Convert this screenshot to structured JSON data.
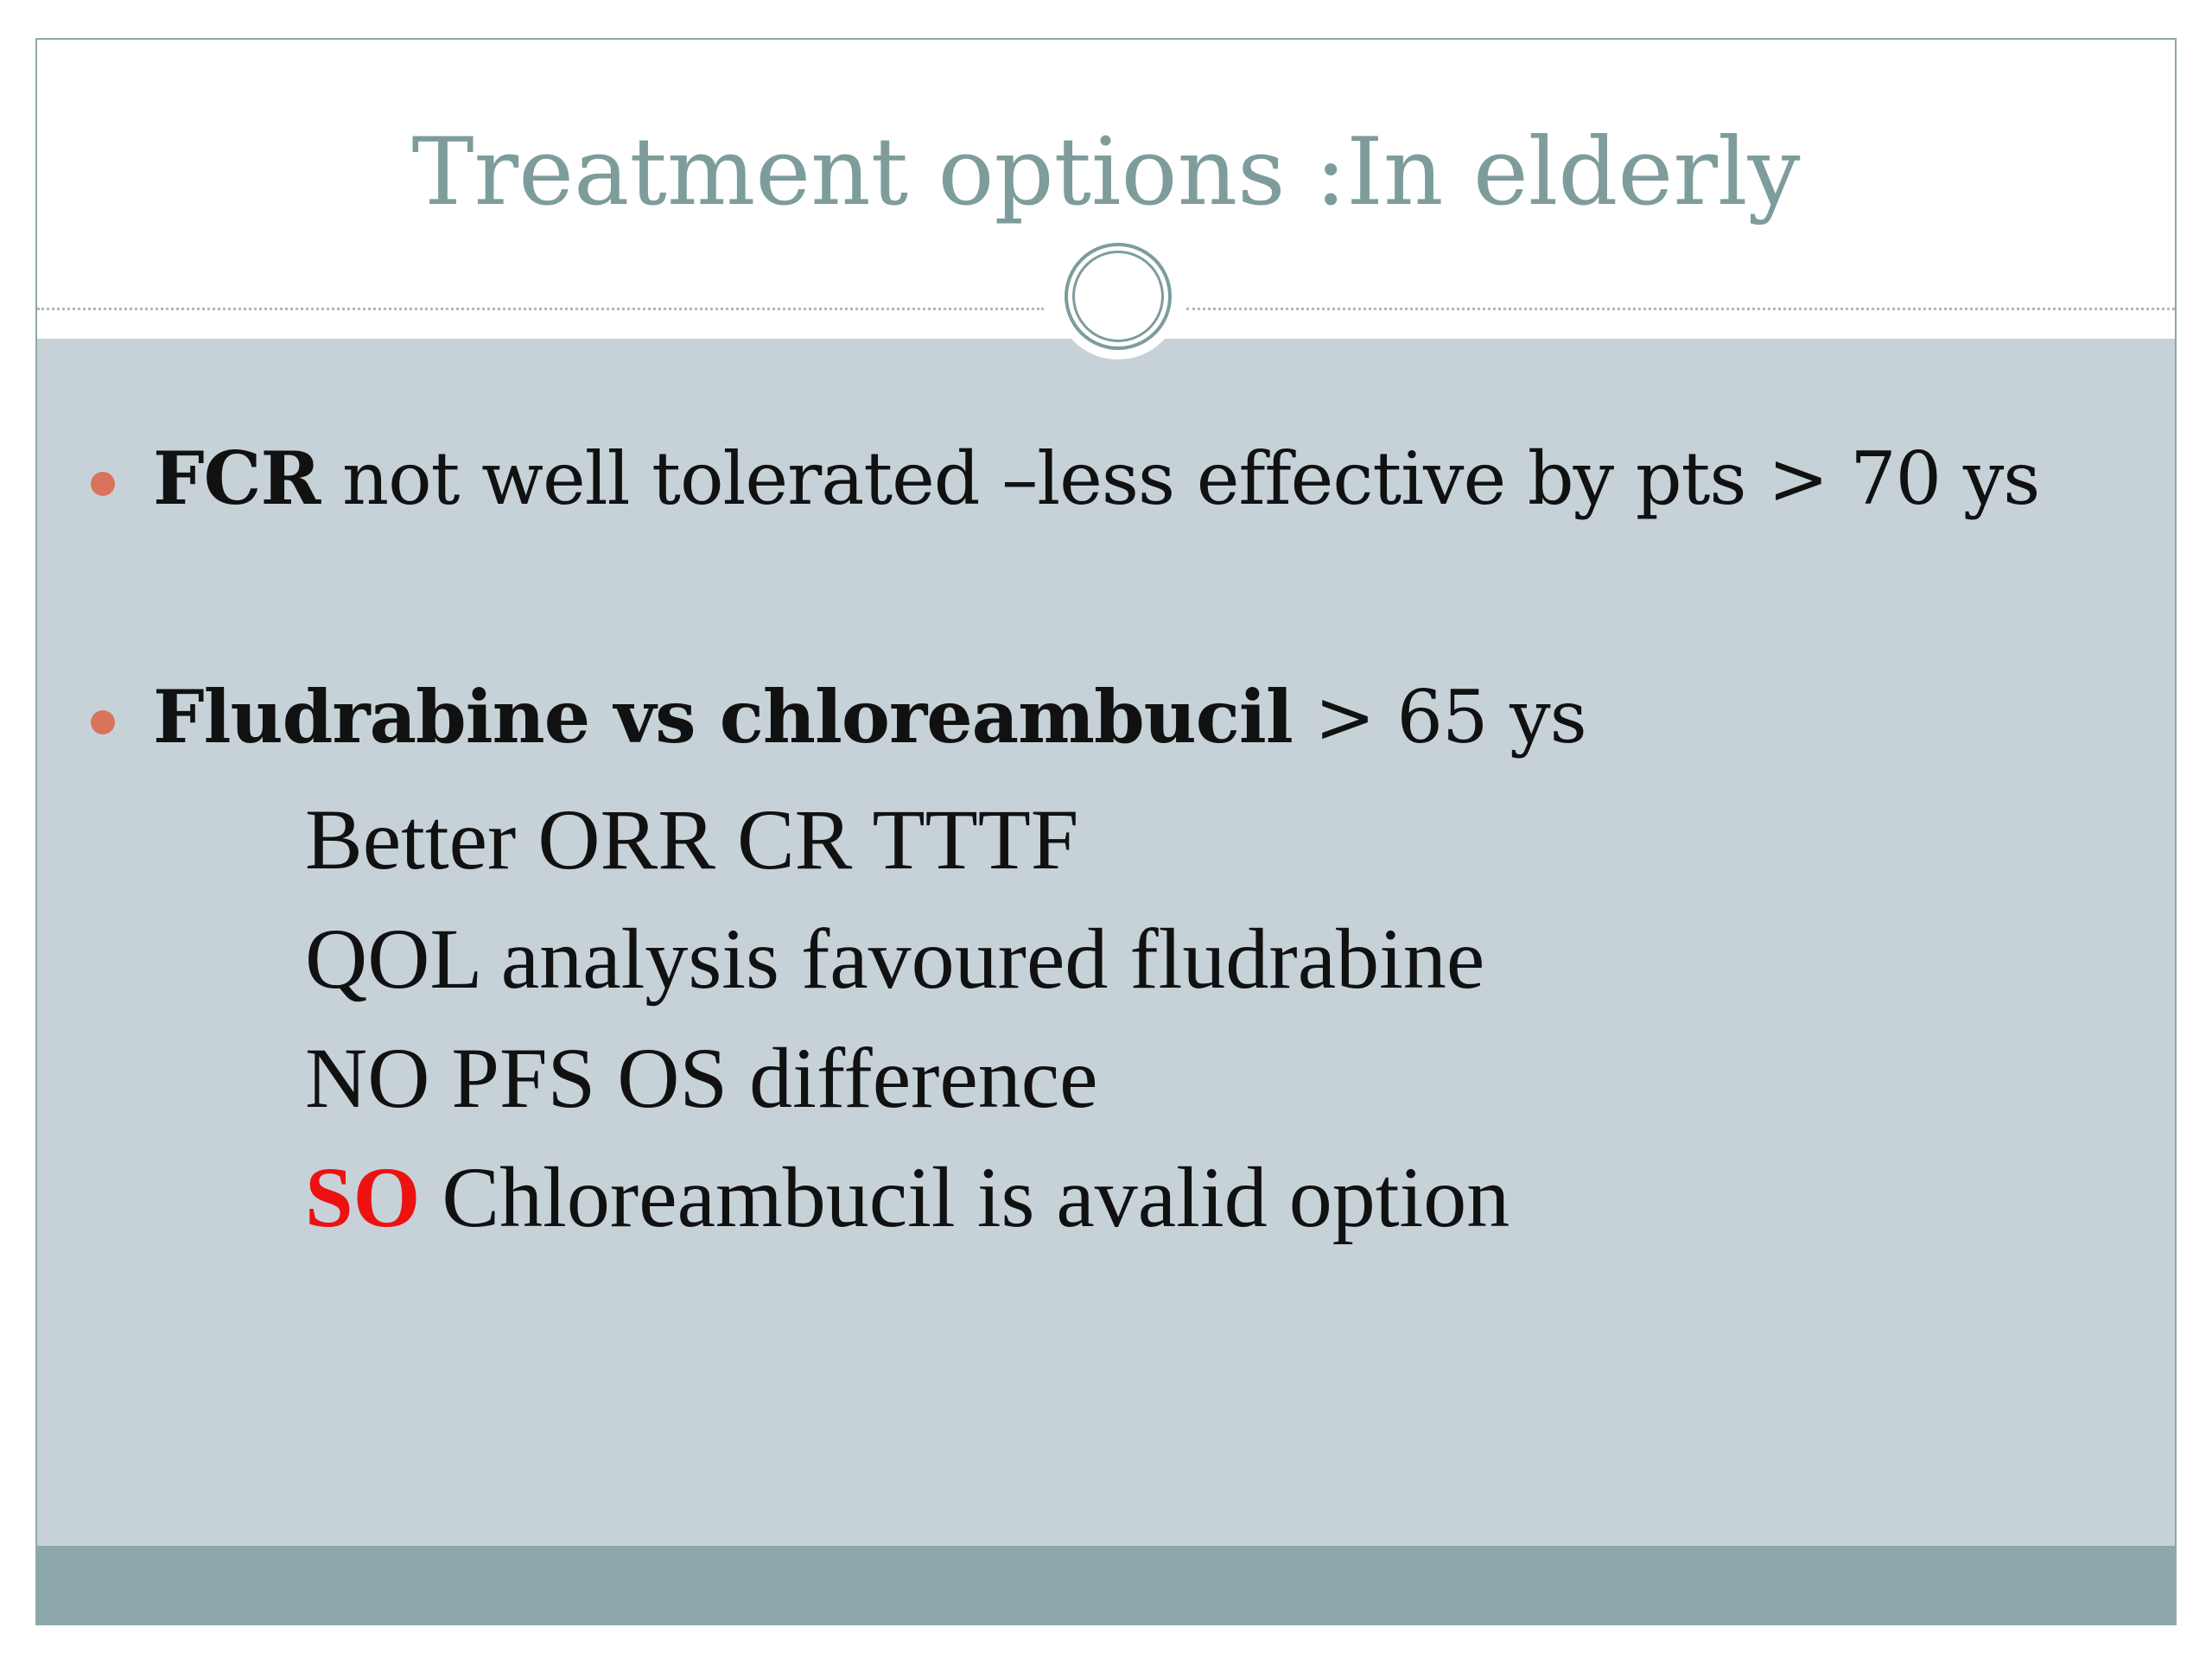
{
  "slide": {
    "title": "Treatment options :In elderly",
    "bullets": [
      {
        "bold": "FCR",
        "rest": " not well tolerated –less effective by pts > 70 ys"
      },
      {
        "bold": "Fludrabine vs chloreambucil",
        "rest": " > 65 ys"
      }
    ],
    "sub_points": [
      "Better ORR CR TTTF",
      "QOL analysis favoured fludrabine",
      "NO PFS OS difference"
    ],
    "conclusion": {
      "highlight": "SO",
      "rest": " Chloreambucil is avalid option"
    }
  },
  "colors": {
    "title": "#7e9c9c",
    "body_background": "#c6d2d8",
    "footer_band": "#8ca8ab",
    "bullet": "#d9735b",
    "highlight": "#ee1111"
  }
}
